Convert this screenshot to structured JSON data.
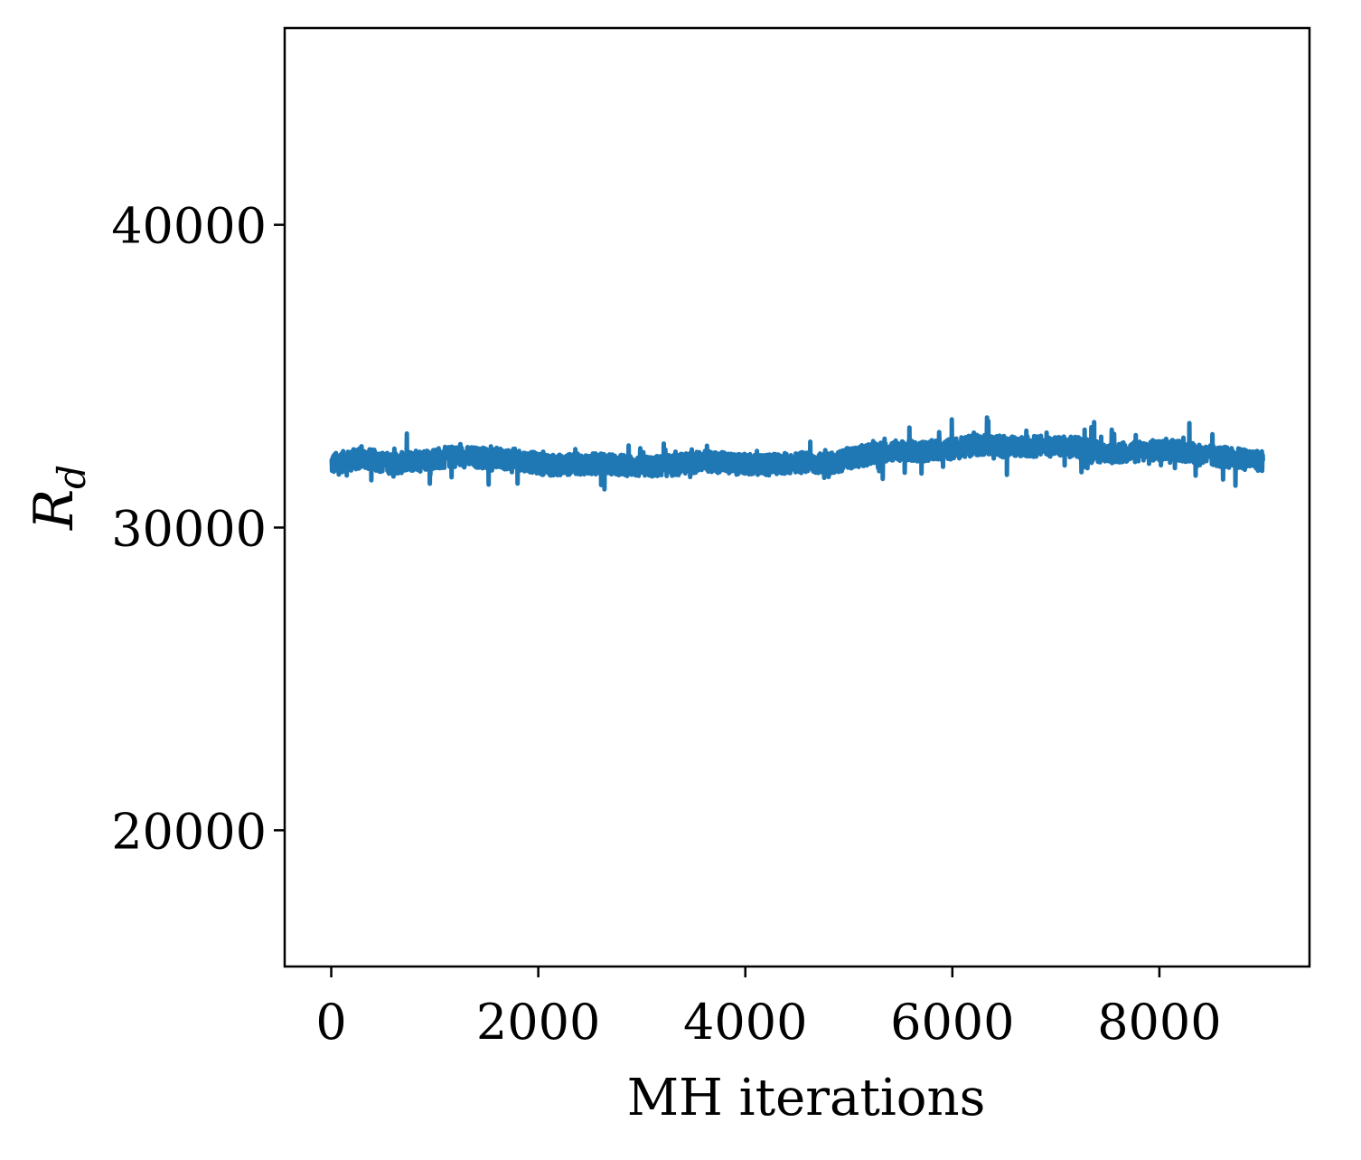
{
  "chart_data": {
    "type": "line",
    "title": "",
    "xlabel": "MH iterations",
    "ylabel": "R",
    "ylabel_subscript": "d",
    "xlim": [
      -450,
      9450
    ],
    "ylim": [
      15500,
      46500
    ],
    "xticks": [
      0,
      2000,
      4000,
      6000,
      8000
    ],
    "xtick_labels": [
      "0",
      "2000",
      "4000",
      "6000",
      "8000"
    ],
    "yticks": [
      20000,
      30000,
      40000
    ],
    "ytick_labels": [
      "20000",
      "30000",
      "40000"
    ],
    "grid": false,
    "legend": "none",
    "series": [
      {
        "color": "#1f77b4",
        "x": [
          0,
          300,
          600,
          900,
          1200,
          1500,
          1800,
          2100,
          2400,
          2700,
          3000,
          3300,
          3600,
          3900,
          4200,
          4500,
          4800,
          5100,
          5400,
          5700,
          6000,
          6300,
          6600,
          6900,
          7200,
          7500,
          7800,
          8100,
          8400,
          8700,
          9000
        ],
        "y": [
          32100,
          32300,
          32100,
          32250,
          32350,
          32300,
          32250,
          32050,
          32100,
          32100,
          32000,
          32050,
          32200,
          32100,
          32050,
          32150,
          32100,
          32350,
          32550,
          32500,
          32600,
          32750,
          32650,
          32700,
          32650,
          32450,
          32500,
          32600,
          32400,
          32300,
          32200
        ]
      }
    ]
  }
}
